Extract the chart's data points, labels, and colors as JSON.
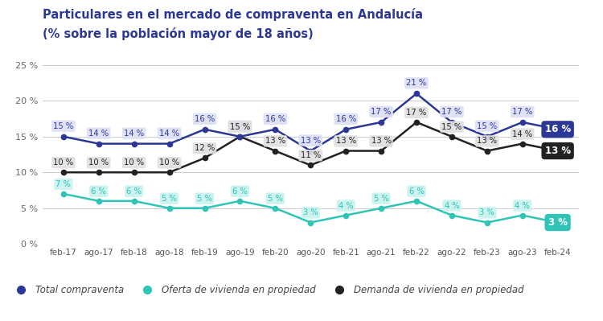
{
  "title_line1": "Particulares en el mercado de compraventa en Andalucía",
  "title_line2": "(% sobre la población mayor de 18 años)",
  "x_labels": [
    "feb-17",
    "ago-17",
    "feb-18",
    "ago-18",
    "feb-19",
    "ago-19",
    "feb-20",
    "ago-20",
    "feb-21",
    "ago-21",
    "feb-22",
    "ago-22",
    "feb-23",
    "ago-23",
    "feb-24"
  ],
  "total_compraventa": [
    15,
    14,
    14,
    14,
    16,
    15,
    16,
    13,
    16,
    17,
    21,
    17,
    15,
    17,
    16
  ],
  "oferta_vivienda": [
    7,
    6,
    6,
    5,
    5,
    6,
    5,
    3,
    4,
    5,
    6,
    4,
    3,
    4,
    3
  ],
  "demanda_vivienda": [
    10,
    10,
    10,
    10,
    12,
    15,
    13,
    11,
    13,
    13,
    17,
    15,
    13,
    14,
    13
  ],
  "color_total": "#2c3896",
  "color_oferta": "#2ec4b6",
  "color_demanda": "#222222",
  "label_total": "Total compraventa",
  "label_oferta": "Oferta de vivienda en propiedad",
  "label_demanda": "Demanda de vivienda en propiedad",
  "bg_label_total": "#dde0f5",
  "bg_label_oferta": "#c8f3ef",
  "bg_label_demanda": "#e0e0e0",
  "ylim": [
    0,
    26
  ],
  "yticks": [
    0,
    5,
    10,
    15,
    20,
    25
  ],
  "ytick_labels": [
    "0 %",
    "5 %",
    "10 %",
    "15 %",
    "20 %",
    "25 %"
  ],
  "bg_color": "#ffffff",
  "title_color": "#2c3896"
}
